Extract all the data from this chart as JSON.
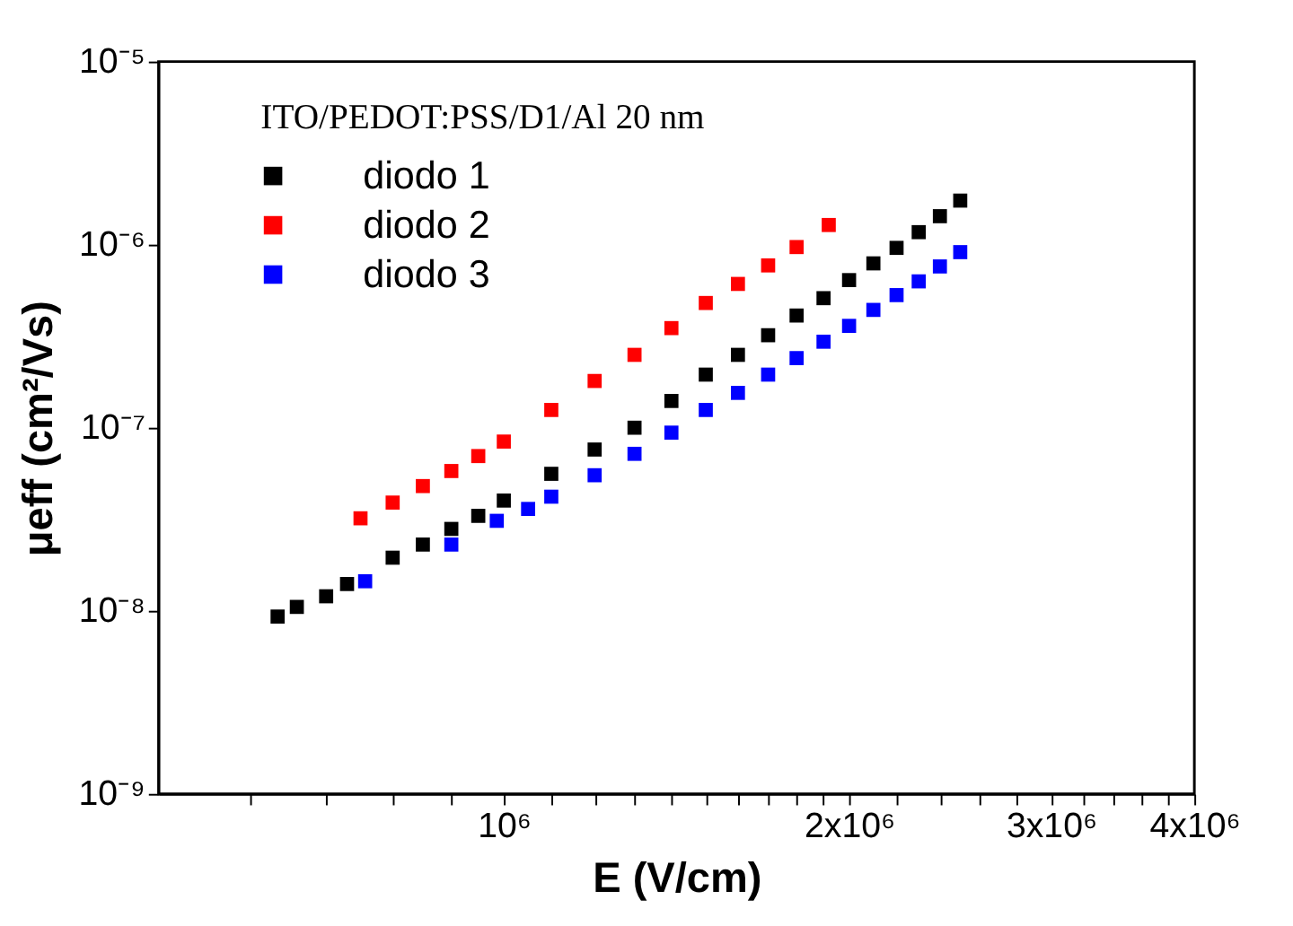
{
  "chart_data": {
    "type": "scatter",
    "xlabel": "E (V/cm)",
    "ylabel": "μeff (cm²/Vs)",
    "log": "xy",
    "grid": false,
    "legend": "top left",
    "marker": "square",
    "annotations": [
      "ITO/PEDOT:PSS/D1/Al   20 nm"
    ],
    "xlim": [
      500000,
      4000000
    ],
    "xticks": [
      {
        "value": 600000,
        "label": null
      },
      {
        "value": 700000,
        "label": null
      },
      {
        "value": 800000,
        "label": null
      },
      {
        "value": 900000,
        "label": null
      },
      {
        "value": 1000000,
        "label": "10⁶"
      },
      {
        "value": 1100000,
        "label": null
      },
      {
        "value": 1200000,
        "label": null
      },
      {
        "value": 1300000,
        "label": null
      },
      {
        "value": 1400000,
        "label": null
      },
      {
        "value": 1500000,
        "label": null
      },
      {
        "value": 1600000,
        "label": null
      },
      {
        "value": 1700000,
        "label": null
      },
      {
        "value": 1800000,
        "label": null
      },
      {
        "value": 1900000,
        "label": null
      },
      {
        "value": 2000000,
        "label": "2x10⁶"
      },
      {
        "value": 2200000,
        "label": null
      },
      {
        "value": 2400000,
        "label": null
      },
      {
        "value": 2600000,
        "label": null
      },
      {
        "value": 2800000,
        "label": null
      },
      {
        "value": 3000000,
        "label": "3x10⁶"
      },
      {
        "value": 3200000,
        "label": null
      },
      {
        "value": 3400000,
        "label": null
      },
      {
        "value": 3600000,
        "label": null
      },
      {
        "value": 3800000,
        "label": null
      },
      {
        "value": 4000000,
        "label": "4x10⁶"
      }
    ],
    "ylim": [
      1e-09,
      1e-05
    ],
    "yticks": [
      {
        "value": 1e-09,
        "label": "10⁻⁹"
      },
      {
        "value": 1e-08,
        "label": "10⁻⁸"
      },
      {
        "value": 1e-07,
        "label": "10⁻⁷"
      },
      {
        "value": 1e-06,
        "label": "10⁻⁶"
      },
      {
        "value": 1e-05,
        "label": "10⁻⁵"
      }
    ],
    "series": [
      {
        "name": "diodo 1",
        "color": "#000000",
        "x": [
          635000,
          660000,
          700000,
          730000,
          800000,
          850000,
          900000,
          950000,
          1000000,
          1100000,
          1200000,
          1300000,
          1400000,
          1500000,
          1600000,
          1700000,
          1800000,
          1900000,
          2000000,
          2100000,
          2200000,
          2300000,
          2400000,
          2500000
        ],
        "values": [
          9.3e-09,
          1.05e-08,
          1.2e-08,
          1.4e-08,
          1.95e-08,
          2.3e-08,
          2.8e-08,
          3.3e-08,
          4e-08,
          5.6e-08,
          7.6e-08,
          1e-07,
          1.4e-07,
          1.95e-07,
          2.5e-07,
          3.2e-07,
          4.1e-07,
          5.1e-07,
          6.4e-07,
          7.9e-07,
          9.6e-07,
          1.17e-06,
          1.43e-06,
          1.74e-06
        ]
      },
      {
        "name": "diodo 2",
        "color": "#ff0000",
        "x": [
          750000,
          800000,
          850000,
          900000,
          950000,
          1000000,
          1100000,
          1200000,
          1300000,
          1400000,
          1500000,
          1600000,
          1700000,
          1800000,
          1920000
        ],
        "values": [
          3.2e-08,
          3.9e-08,
          4.8e-08,
          5.8e-08,
          7e-08,
          8.4e-08,
          1.25e-07,
          1.8e-07,
          2.5e-07,
          3.5e-07,
          4.8e-07,
          6.1e-07,
          7.7e-07,
          9.7e-07,
          1.28e-06
        ]
      },
      {
        "name": "diodo 3",
        "color": "#0000ff",
        "x": [
          757000,
          900000,
          986000,
          1050000,
          1100000,
          1200000,
          1300000,
          1400000,
          1500000,
          1600000,
          1700000,
          1800000,
          1900000,
          2000000,
          2100000,
          2200000,
          2300000,
          2400000,
          2500000
        ],
        "values": [
          1.45e-08,
          2.3e-08,
          3.1e-08,
          3.6e-08,
          4.2e-08,
          5.5e-08,
          7.2e-08,
          9.4e-08,
          1.25e-07,
          1.55e-07,
          1.95e-07,
          2.4e-07,
          2.95e-07,
          3.6e-07,
          4.4e-07,
          5.3e-07,
          6.3e-07,
          7.6e-07,
          9.1e-07
        ]
      }
    ]
  }
}
